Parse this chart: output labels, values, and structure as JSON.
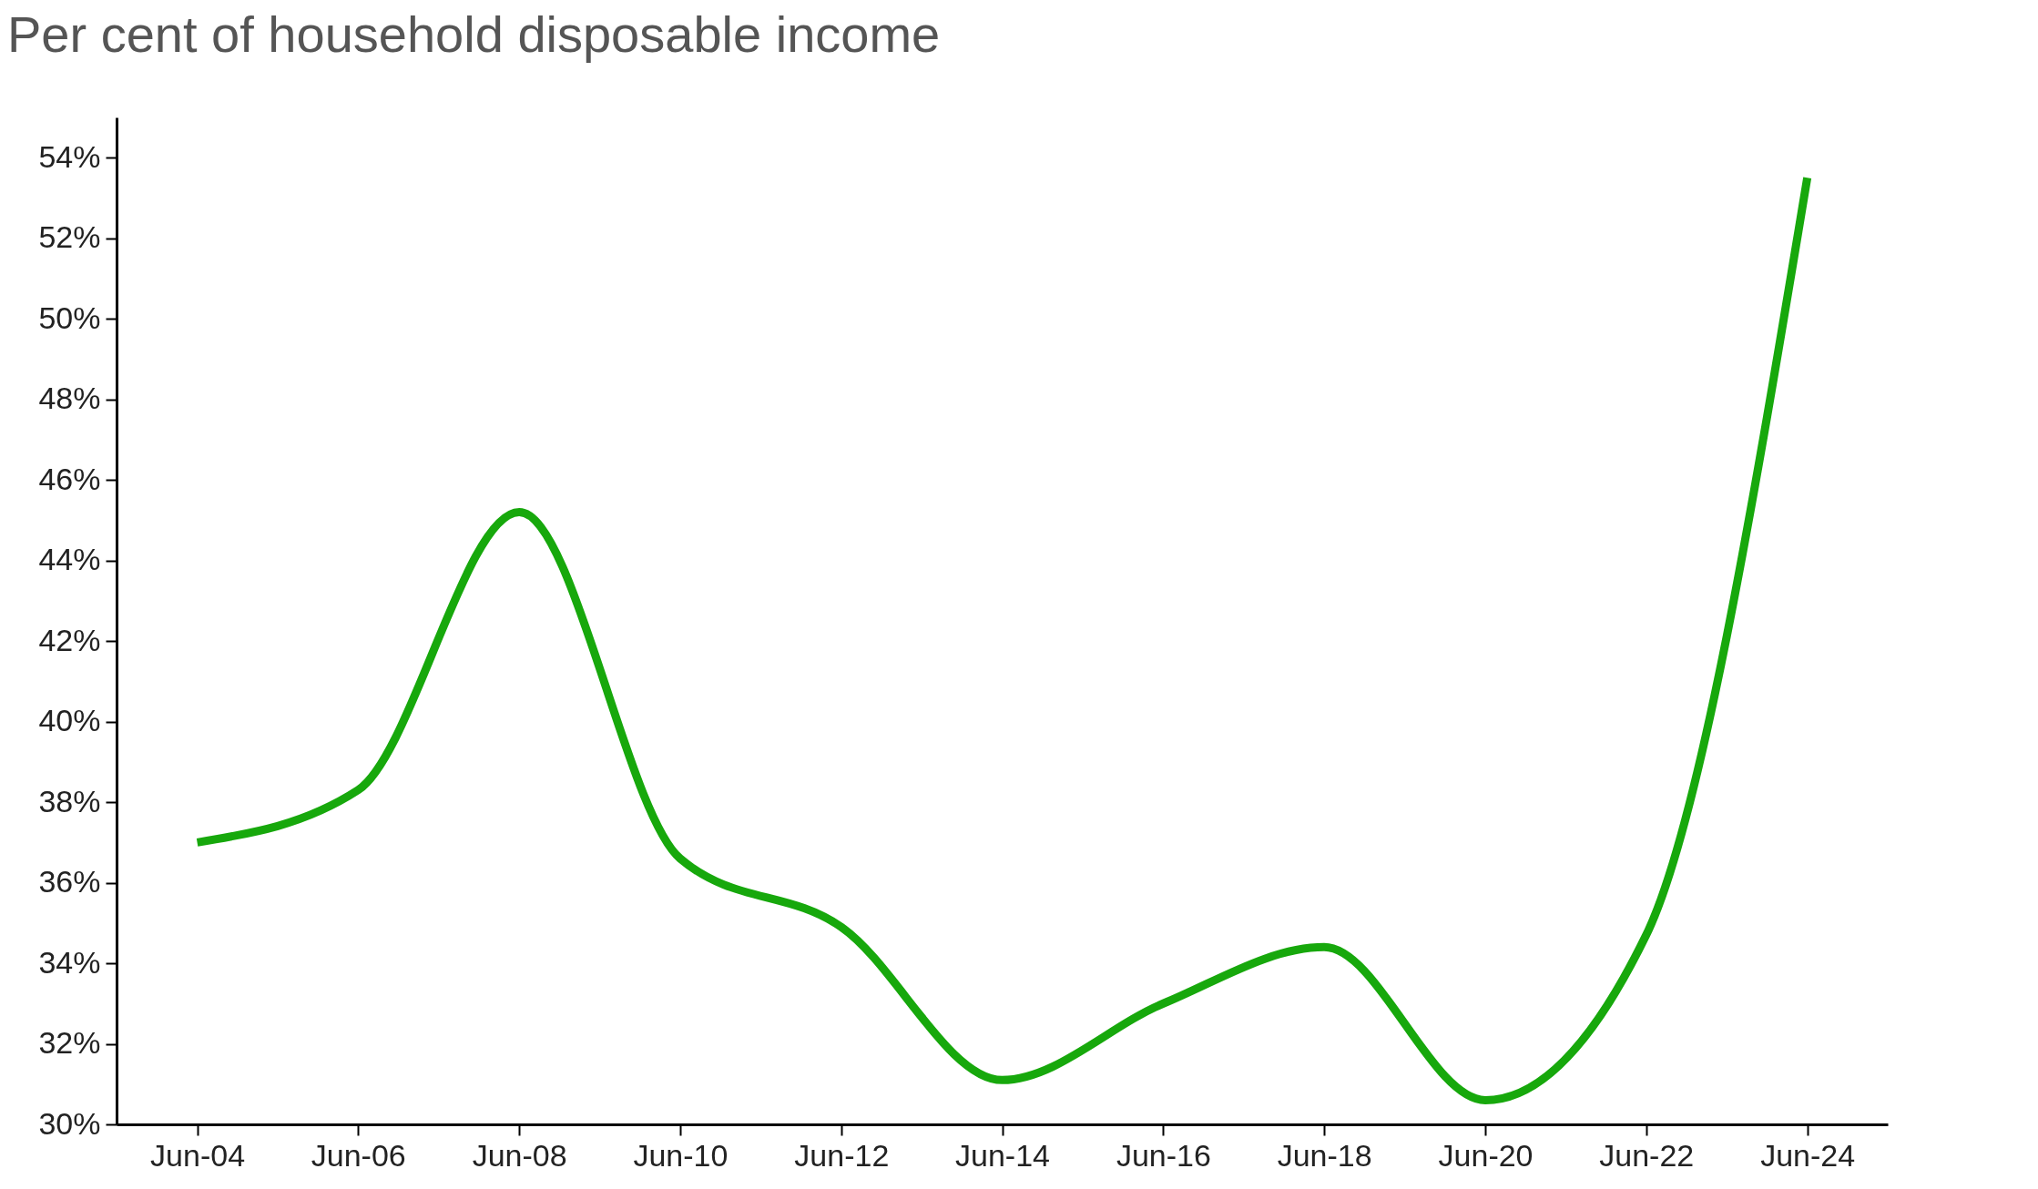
{
  "chart_data": {
    "type": "line",
    "title": "Per cent of household disposable income",
    "x": [
      "2004-06",
      "2006-06",
      "2008-06",
      "2010-06",
      "2012-06",
      "2014-06",
      "2016-06",
      "2018-06",
      "2020-06",
      "2022-06",
      "2024-06"
    ],
    "series": [
      {
        "color": "#17a80c",
        "values": [
          37.0,
          38.3,
          45.2,
          36.6,
          34.9,
          31.1,
          33.0,
          34.4,
          30.6,
          34.7,
          53.5
        ]
      }
    ],
    "xlim": [
      "2003-06",
      "2025-06"
    ],
    "xticks": [
      {
        "value": "2004-06",
        "label": "Jun-04"
      },
      {
        "value": "2006-06",
        "label": "Jun-06"
      },
      {
        "value": "2008-06",
        "label": "Jun-08"
      },
      {
        "value": "2010-06",
        "label": "Jun-10"
      },
      {
        "value": "2012-06",
        "label": "Jun-12"
      },
      {
        "value": "2014-06",
        "label": "Jun-14"
      },
      {
        "value": "2016-06",
        "label": "Jun-16"
      },
      {
        "value": "2018-06",
        "label": "Jun-18"
      },
      {
        "value": "2020-06",
        "label": "Jun-20"
      },
      {
        "value": "2022-06",
        "label": "Jun-22"
      },
      {
        "value": "2024-06",
        "label": "Jun-24"
      }
    ],
    "ylim": [
      30,
      55
    ],
    "yticks": [
      {
        "value": 30,
        "label": "30%"
      },
      {
        "value": 32,
        "label": "32%"
      },
      {
        "value": 34,
        "label": "34%"
      },
      {
        "value": 36,
        "label": "36%"
      },
      {
        "value": 38,
        "label": "38%"
      },
      {
        "value": 40,
        "label": "40%"
      },
      {
        "value": 42,
        "label": "42%"
      },
      {
        "value": 44,
        "label": "44%"
      },
      {
        "value": 46,
        "label": "46%"
      },
      {
        "value": 48,
        "label": "48%"
      },
      {
        "value": 50,
        "label": "50%"
      },
      {
        "value": 52,
        "label": "52%"
      },
      {
        "value": 54,
        "label": "54%"
      }
    ],
    "grid": false,
    "legend": false,
    "marker": "none",
    "line_style": "solid"
  }
}
